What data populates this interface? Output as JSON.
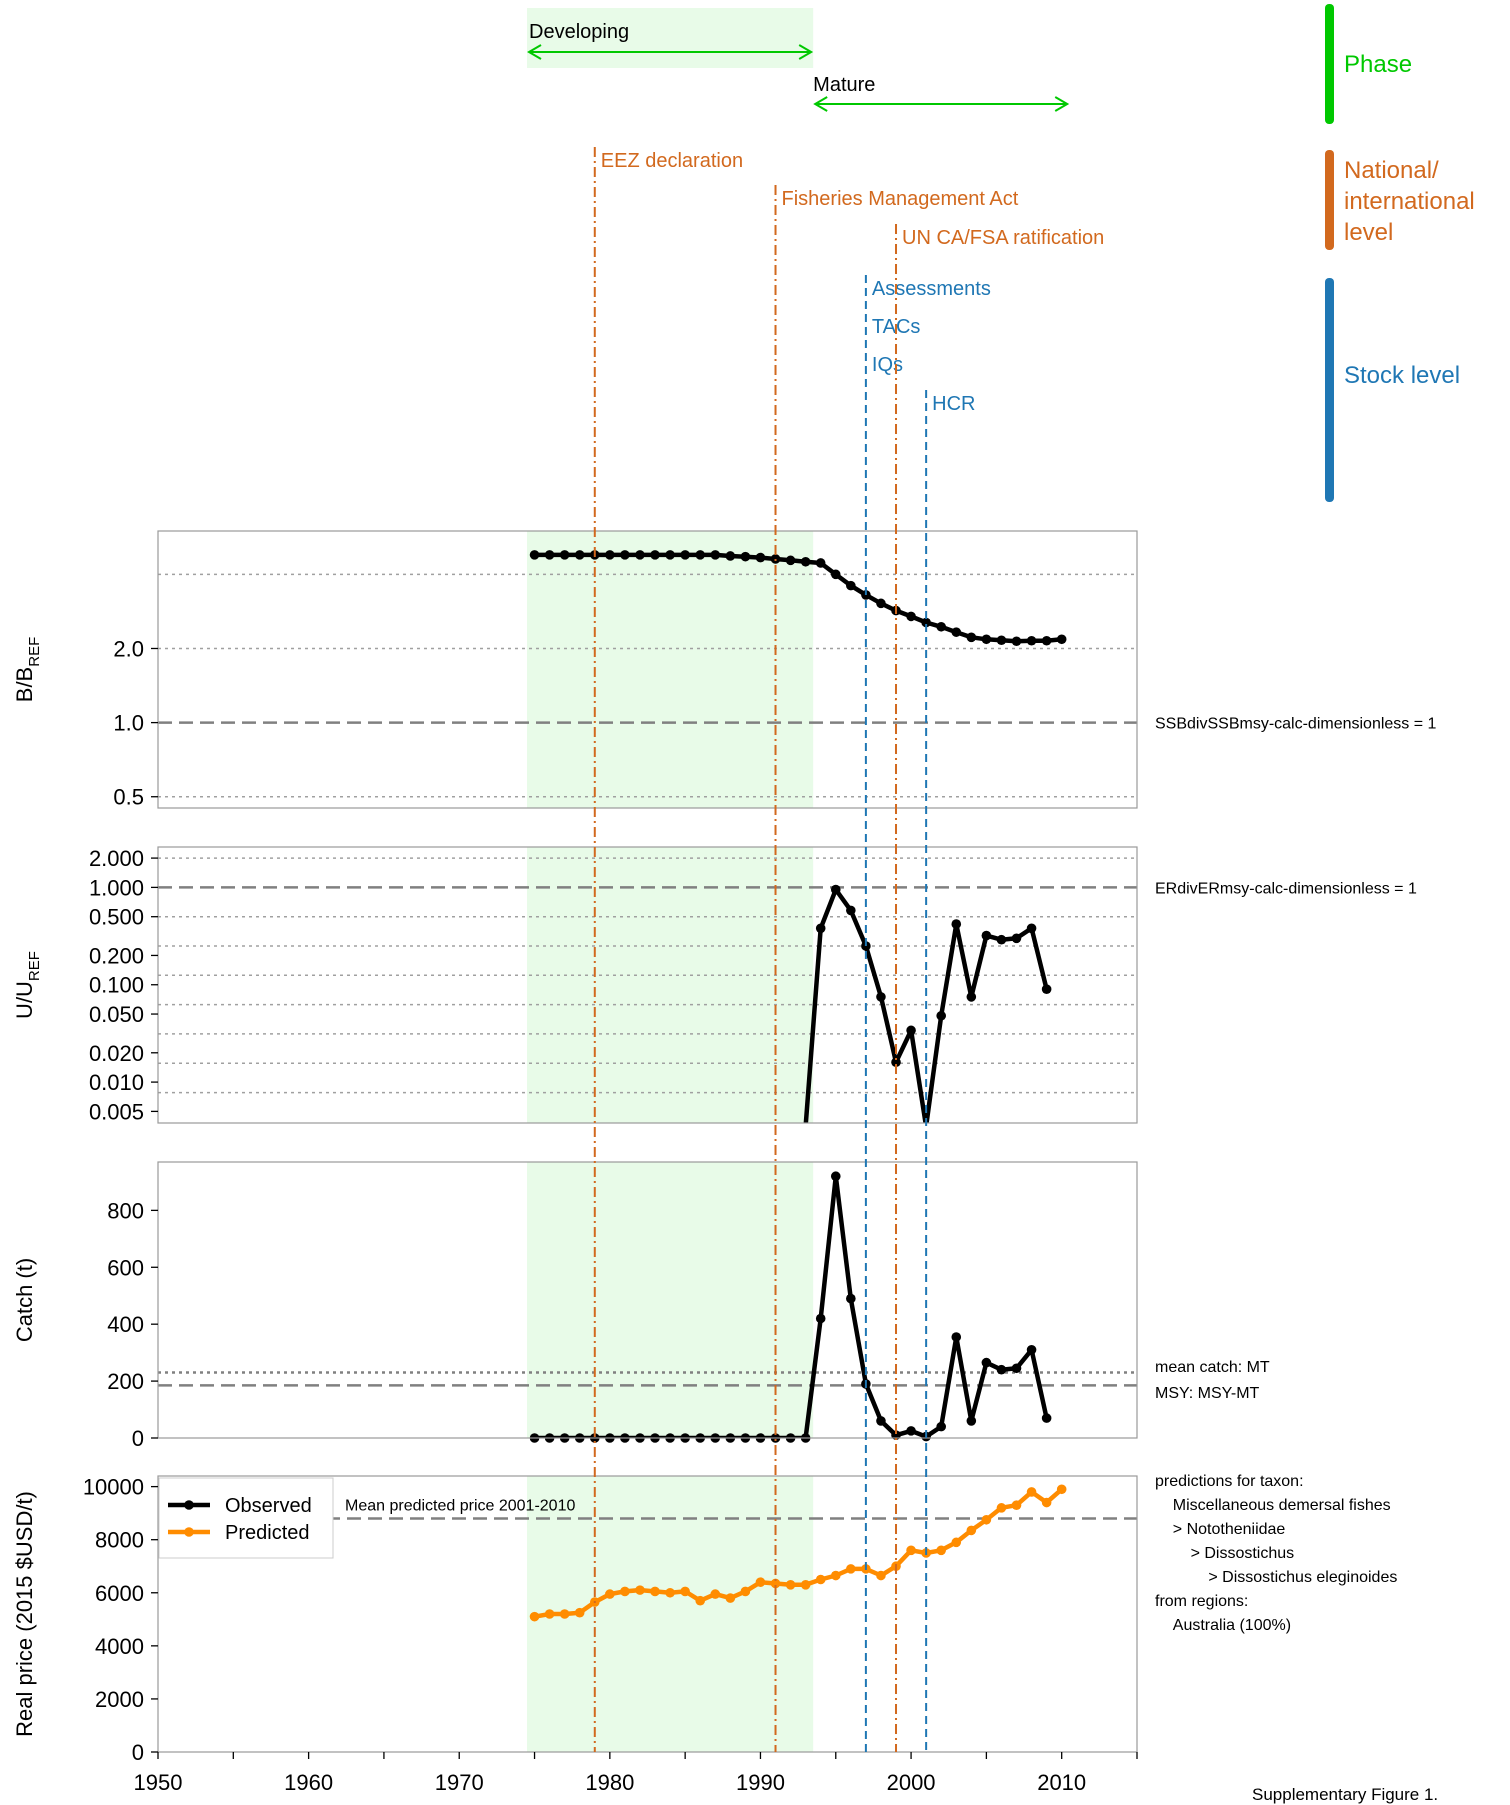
{
  "colors": {
    "phase": "#00c800",
    "national": "#d2691e",
    "stock": "#1f77b4",
    "observed": "#000000",
    "predicted": "#ff8c00",
    "developing_band": "#e8fbe8",
    "ref_line": "#808080",
    "grid": "#a0a0a0"
  },
  "categories": {
    "phase": "Phase",
    "national": "National/\ninternational\nlevel",
    "stock": "Stock level"
  },
  "phases": [
    {
      "label": "Developing",
      "start": 1974.5,
      "end": 1993.5
    },
    {
      "label": "Mature",
      "start": 1993.5,
      "end": 2010.5
    }
  ],
  "events": [
    {
      "label": "EEZ declaration",
      "year": 1979,
      "kind": "national",
      "row": 0
    },
    {
      "label": "Fisheries Management Act",
      "year": 1991,
      "kind": "national",
      "row": 1
    },
    {
      "label": "UN CA/FSA ratification",
      "year": 1999,
      "kind": "national",
      "row": 2
    },
    {
      "label": "Assessments",
      "year": 1997,
      "kind": "stock",
      "row": 3
    },
    {
      "label": "TACs",
      "year": 1997,
      "kind": "stock",
      "row": 4
    },
    {
      "label": "IQs",
      "year": 1997,
      "kind": "stock",
      "row": 5
    },
    {
      "label": "HCR",
      "year": 2001,
      "kind": "stock",
      "row": 6
    }
  ],
  "footer": "Supplementary Figure 1.",
  "chart_data": [
    {
      "id": "biomass",
      "type": "line",
      "ylabel_main": "B/B",
      "ylabel_sub": "REF",
      "yscale": "log",
      "ylim": [
        0.45,
        6
      ],
      "yticks": [
        0.5,
        1.0,
        2.0
      ],
      "ytick_labels": [
        "0.5",
        "1.0",
        "2.0"
      ],
      "grid_y": [
        0.5,
        2.0,
        4.0
      ],
      "ref_value": 1.0,
      "ref_label": "SSBdivSSBmsy-calc-dimensionless = 1",
      "series": [
        {
          "kind": "observed",
          "x": [
            1975,
            1976,
            1977,
            1978,
            1979,
            1980,
            1981,
            1982,
            1983,
            1984,
            1985,
            1986,
            1987,
            1988,
            1989,
            1990,
            1991,
            1992,
            1993,
            1994,
            1995,
            1996,
            1997,
            1998,
            1999,
            2000,
            2001,
            2002,
            2003,
            2004,
            2005,
            2006,
            2007,
            2008,
            2009,
            2010
          ],
          "y": [
            4.8,
            4.8,
            4.8,
            4.8,
            4.8,
            4.8,
            4.8,
            4.8,
            4.8,
            4.8,
            4.8,
            4.8,
            4.8,
            4.75,
            4.72,
            4.68,
            4.62,
            4.56,
            4.5,
            4.45,
            4.0,
            3.6,
            3.3,
            3.05,
            2.85,
            2.7,
            2.55,
            2.45,
            2.33,
            2.22,
            2.18,
            2.16,
            2.14,
            2.15,
            2.15,
            2.18
          ]
        }
      ]
    },
    {
      "id": "exploitation",
      "type": "line",
      "ylabel_main": "U/U",
      "ylabel_sub": "REF",
      "yscale": "log",
      "ylim": [
        0.0038,
        2.6
      ],
      "yticks": [
        0.005,
        0.01,
        0.02,
        0.05,
        0.1,
        0.2,
        0.5,
        1.0,
        2.0
      ],
      "ytick_labels": [
        "0.005",
        "0.010",
        "0.020",
        "0.050",
        "0.100",
        "0.200",
        "0.500",
        "1.000",
        "2.000"
      ],
      "grid_y": [
        0.0078,
        0.0156,
        0.03125,
        0.0625,
        0.125,
        0.25,
        0.5,
        2.0
      ],
      "ref_value": 1.0,
      "ref_label": "ERdivERmsy-calc-dimensionless = 1",
      "series": [
        {
          "kind": "observed",
          "x": [
            1993,
            1994,
            1995,
            1996,
            1997,
            1998,
            1999,
            2000,
            2001,
            2002,
            2003,
            2004,
            2005,
            2006,
            2007,
            2008,
            2009
          ],
          "y": [
            0.0035,
            0.38,
            0.95,
            0.58,
            0.25,
            0.075,
            0.016,
            0.034,
            0.0035,
            0.048,
            0.42,
            0.075,
            0.32,
            0.29,
            0.3,
            0.38,
            0.09
          ]
        }
      ]
    },
    {
      "id": "catch",
      "type": "line",
      "ylabel_main": "Catch (t)",
      "yscale": "linear",
      "ylim": [
        0,
        970
      ],
      "yticks": [
        0,
        200,
        400,
        600,
        800
      ],
      "ytick_labels": [
        "0",
        "200",
        "400",
        "600",
        "800"
      ],
      "mean_catch_value": 230,
      "msy_value": 185,
      "mean_catch_label": "mean catch: MT",
      "msy_label": "MSY: MSY-MT",
      "series": [
        {
          "kind": "observed",
          "x": [
            1975,
            1976,
            1977,
            1978,
            1979,
            1980,
            1981,
            1982,
            1983,
            1984,
            1985,
            1986,
            1987,
            1988,
            1989,
            1990,
            1991,
            1992,
            1993,
            1994,
            1995,
            1996,
            1997,
            1998,
            1999,
            2000,
            2001,
            2002,
            2003,
            2004,
            2005,
            2006,
            2007,
            2008,
            2009
          ],
          "y": [
            0,
            0,
            0,
            0,
            0,
            0,
            0,
            0,
            0,
            0,
            0,
            0,
            0,
            0,
            0,
            0,
            0,
            0,
            0,
            420,
            920,
            490,
            190,
            60,
            10,
            25,
            5,
            40,
            355,
            60,
            265,
            240,
            245,
            310,
            70
          ]
        }
      ]
    },
    {
      "id": "price",
      "type": "line",
      "ylabel_main": "Real price (2015 $USD/t)",
      "yscale": "linear",
      "ylim": [
        0,
        10400
      ],
      "yticks": [
        0,
        2000,
        4000,
        6000,
        8000,
        10000
      ],
      "ytick_labels": [
        "0",
        "2000",
        "4000",
        "6000",
        "8000",
        "10000"
      ],
      "mean_price_value": 8800,
      "mean_price_label": "Mean predicted price 2001-2010",
      "legend": {
        "observed": "Observed",
        "predicted": "Predicted",
        "placement": "top-left"
      },
      "taxon_note": [
        "predictions for taxon:",
        "  Miscellaneous demersal fishes",
        "  > Nototheniidae",
        "    > Dissostichus",
        "      > Dissostichus eleginoides",
        "from regions:",
        "  Australia (100%)"
      ],
      "series": [
        {
          "kind": "predicted",
          "x": [
            1975,
            1976,
            1977,
            1978,
            1979,
            1980,
            1981,
            1982,
            1983,
            1984,
            1985,
            1986,
            1987,
            1988,
            1989,
            1990,
            1991,
            1992,
            1993,
            1994,
            1995,
            1996,
            1997,
            1998,
            1999,
            2000,
            2001,
            2002,
            2003,
            2004,
            2005,
            2006,
            2007,
            2008,
            2009,
            2010
          ],
          "y": [
            5100,
            5200,
            5200,
            5250,
            5650,
            5950,
            6050,
            6100,
            6050,
            6000,
            6050,
            5700,
            5950,
            5800,
            6050,
            6400,
            6350,
            6300,
            6300,
            6500,
            6650,
            6900,
            6900,
            6650,
            7000,
            7600,
            7500,
            7600,
            7900,
            8350,
            8750,
            9200,
            9300,
            9800,
            9400,
            9900
          ]
        }
      ]
    }
  ],
  "xaxis": {
    "ticks": [
      1950,
      1960,
      1970,
      1980,
      1990,
      2000,
      2010
    ],
    "tick_labels": [
      "1950",
      "1960",
      "1970",
      "1980",
      "1990",
      "2000",
      "2010"
    ],
    "xlim": [
      1950,
      2015
    ]
  }
}
